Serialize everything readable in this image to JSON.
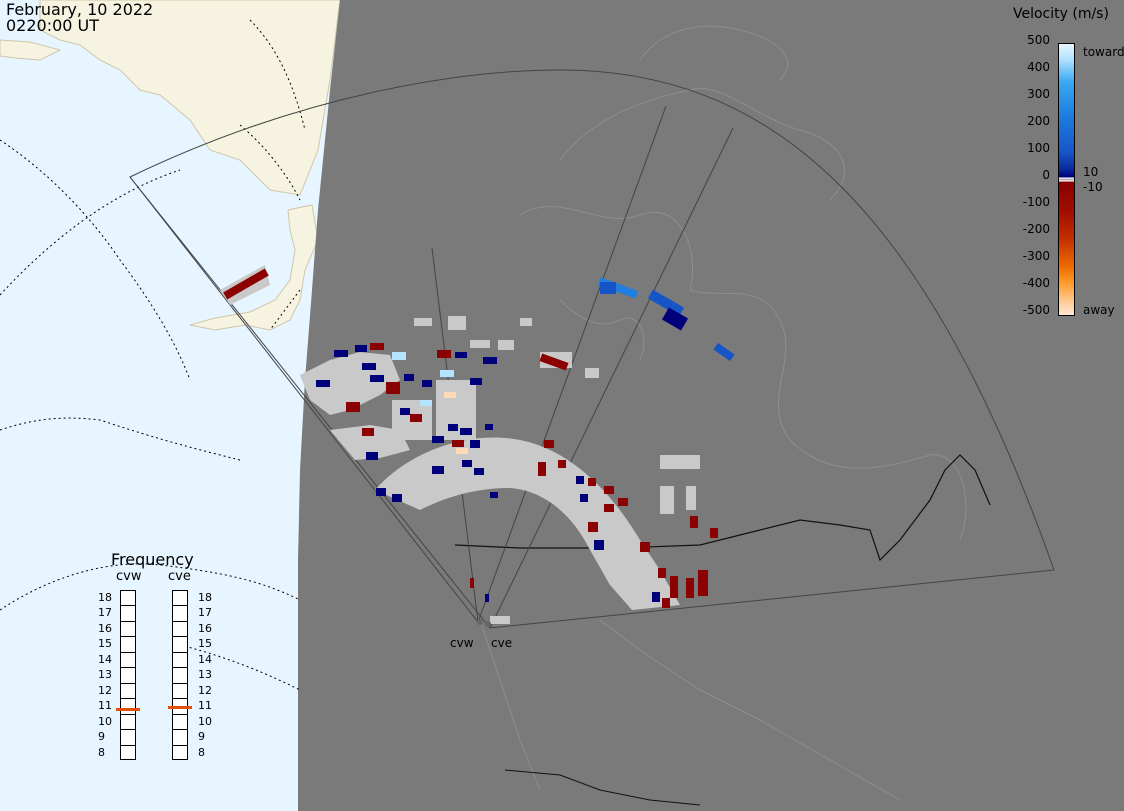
{
  "header": {
    "date": "February, 10 2022",
    "time": "0220:00 UT"
  },
  "velocity_legend": {
    "title": "Velocity (m/s)",
    "ticks": [
      "500",
      "400",
      "300",
      "200",
      "100",
      "0",
      "-100",
      "-200",
      "-300",
      "-400",
      "-500"
    ],
    "labels": {
      "toward": "toward",
      "away": "away",
      "pos_threshold": "10",
      "neg_threshold": "-10"
    }
  },
  "frequency_legend": {
    "title": "Frequency",
    "columns": [
      "cvw",
      "cve"
    ],
    "values": [
      "18",
      "17",
      "16",
      "15",
      "14",
      "13",
      "12",
      "11",
      "10",
      "9",
      "8"
    ],
    "current": {
      "cvw": 10.8,
      "cve": 10.9
    }
  },
  "radar_sites": [
    "cvw",
    "cve"
  ],
  "colors": {
    "ocean": "#e6f5ff",
    "land_lit": "#f6f3e0",
    "night": "#7a7a7a",
    "ground_scatter": "#c9c9c9",
    "toward_dark": "#00007a",
    "toward_light": "#b4e4ff",
    "away_dark": "#8b0000",
    "away_light": "#ffd8b8",
    "frequency_marker": "#e05010"
  }
}
